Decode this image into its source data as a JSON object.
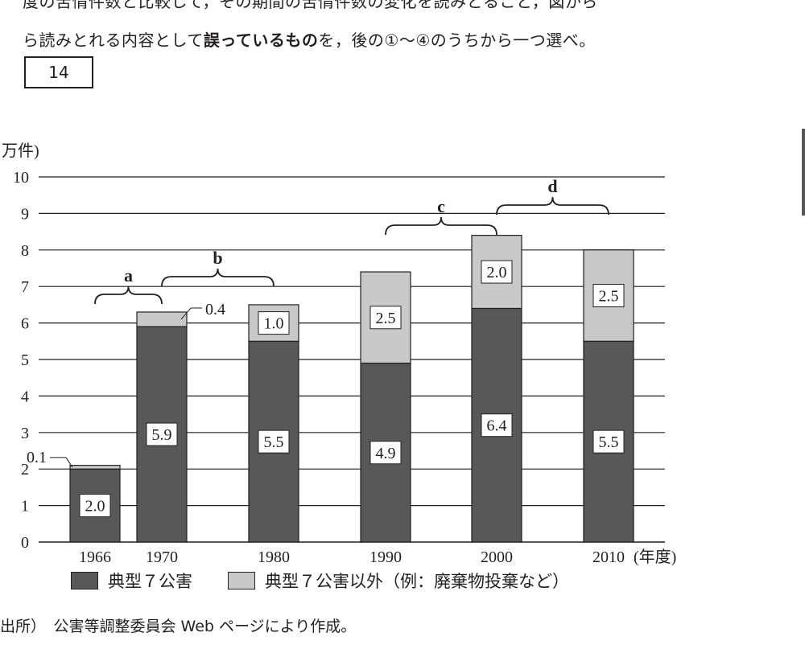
{
  "question": {
    "line1": "度の苦情件数と比較して，その期間の苦情件数の変化を読みとること，図から",
    "line2_pre": "ら読みとれる内容として",
    "line2_bold": "誤っているもの",
    "line2_post": "を，後の①～④のうちから一つ選べ。",
    "answer_number": "14"
  },
  "chart_data": {
    "type": "bar",
    "stacked": true,
    "ylabel": "万件)",
    "xlabel": "(年度)",
    "ylim": [
      0,
      10
    ],
    "yticks": [
      "0",
      "1",
      "2",
      "3",
      "4",
      "5",
      "6",
      "7",
      "8",
      "9",
      "10"
    ],
    "categories": [
      "1966",
      "1970",
      "1980",
      "1990",
      "2000",
      "2010"
    ],
    "series": [
      {
        "name": "典型７公害",
        "color": "#58585a",
        "values": [
          2.0,
          5.9,
          5.5,
          4.9,
          6.4,
          5.5
        ],
        "labels": [
          "2.0",
          "5.9",
          "5.5",
          "4.9",
          "6.4",
          "5.5"
        ]
      },
      {
        "name": "典型７公害以外（例：廃棄物投棄など）",
        "color": "#c9c9c9",
        "values": [
          0.1,
          0.4,
          1.0,
          2.5,
          2.0,
          2.5
        ],
        "labels": [
          "0.1",
          "0.4",
          "1.0",
          "2.5",
          "2.0",
          "2.5"
        ]
      }
    ],
    "grid": true,
    "legend": "bottom",
    "period_brackets": [
      {
        "label": "a",
        "from": "1966",
        "to": "1970"
      },
      {
        "label": "b",
        "from": "1970",
        "to": "1980"
      },
      {
        "label": "c",
        "from": "1990",
        "to": "2000"
      },
      {
        "label": "d",
        "from": "2000",
        "to": "2010"
      }
    ]
  },
  "source": "出所）　公害等調整委員会 Web ページにより作成。"
}
